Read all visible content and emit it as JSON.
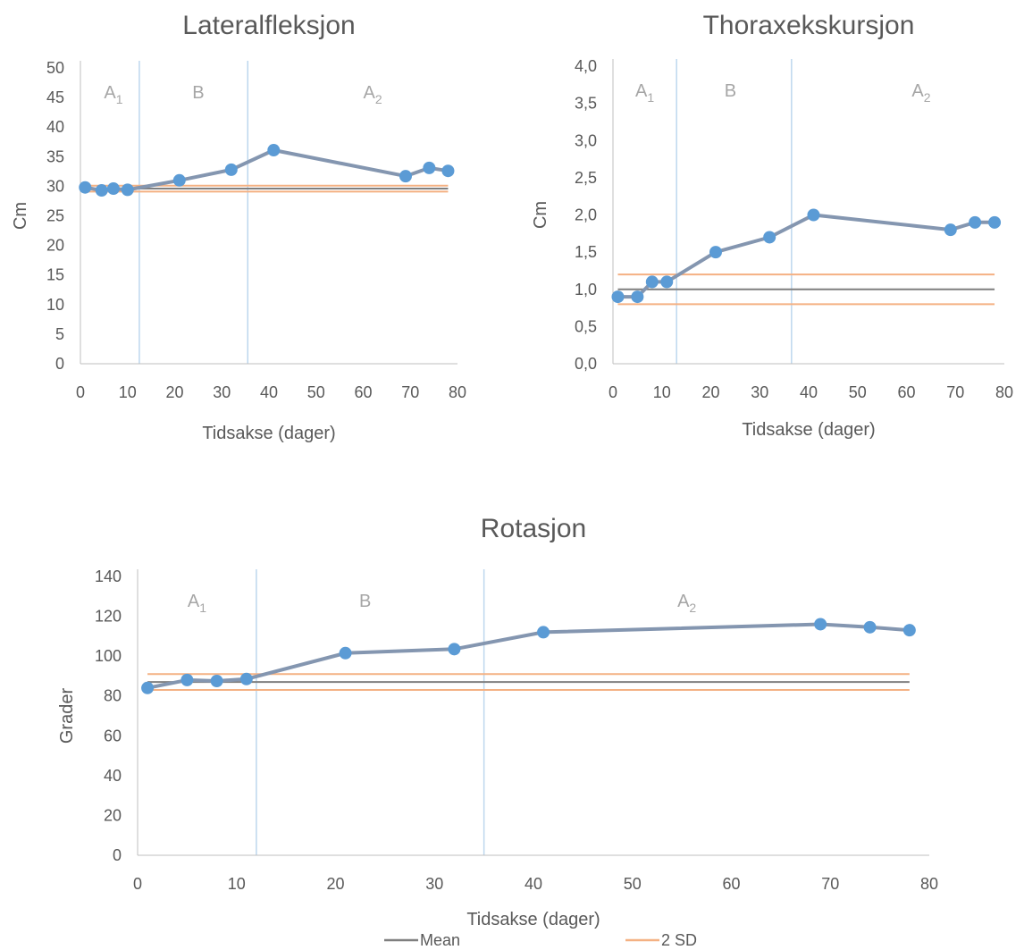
{
  "chart_data": [
    {
      "type": "line",
      "title": "Lateralfleksjon",
      "xlabel": "Tidsakse (dager)",
      "ylabel": "Cm",
      "xlim": [
        0,
        80
      ],
      "ylim": [
        0,
        50
      ],
      "xticks": [
        0,
        10,
        20,
        30,
        40,
        50,
        60,
        70,
        80
      ],
      "yticks": [
        0,
        5,
        10,
        15,
        20,
        25,
        30,
        35,
        40,
        45,
        50
      ],
      "ytick_decimals": 0,
      "x": [
        1,
        4.5,
        7,
        10,
        21,
        32,
        41,
        69,
        74,
        78
      ],
      "values": [
        29.8,
        29.3,
        29.6,
        29.4,
        31.0,
        32.8,
        36.1,
        31.7,
        33.1,
        32.6
      ],
      "mean": 29.6,
      "sd2": [
        29.1,
        30.1
      ],
      "ref_x": [
        1,
        78
      ],
      "phase_lines": [
        12.5,
        35.5
      ],
      "phases": [
        {
          "label": "A",
          "sub": "1",
          "x": 7
        },
        {
          "label": "B",
          "sub": "",
          "x": 25
        },
        {
          "label": "A",
          "sub": "2",
          "x": 62
        }
      ],
      "grid": false,
      "colors": {
        "data": "#5b9bd5",
        "line": "#8496b0",
        "mean": "#7f7f7f",
        "sd": "#f4b183",
        "phase": "#bdd7ee"
      }
    },
    {
      "type": "line",
      "title": "Thoraxekskursjon",
      "xlabel": "Tidsakse (dager)",
      "ylabel": "Cm",
      "xlim": [
        0,
        80
      ],
      "ylim": [
        0,
        4
      ],
      "xticks": [
        0,
        10,
        20,
        30,
        40,
        50,
        60,
        70,
        80
      ],
      "yticks": [
        0,
        0.5,
        1,
        1.5,
        2,
        2.5,
        3,
        3.5,
        4
      ],
      "ytick_decimals": 1,
      "decimal_comma": true,
      "x": [
        1,
        5,
        8,
        11,
        21,
        32,
        41,
        69,
        74,
        78
      ],
      "values": [
        0.9,
        0.9,
        1.1,
        1.1,
        1.5,
        1.7,
        2.0,
        1.8,
        1.9,
        1.9
      ],
      "mean": 1.0,
      "sd2": [
        0.8,
        1.2
      ],
      "ref_x": [
        1,
        78
      ],
      "phase_lines": [
        13,
        36.5
      ],
      "phases": [
        {
          "label": "A",
          "sub": "1",
          "x": 6.5
        },
        {
          "label": "B",
          "sub": "",
          "x": 24
        },
        {
          "label": "A",
          "sub": "2",
          "x": 63
        }
      ],
      "grid": false,
      "colors": {
        "data": "#5b9bd5",
        "line": "#8496b0",
        "mean": "#7f7f7f",
        "sd": "#f4b183",
        "phase": "#bdd7ee"
      }
    },
    {
      "type": "line",
      "title": "Rotasjon",
      "xlabel": "Tidsakse (dager)",
      "ylabel": "Grader",
      "xlim": [
        0,
        80
      ],
      "ylim": [
        0,
        140
      ],
      "xticks": [
        0,
        10,
        20,
        30,
        40,
        50,
        60,
        70,
        80
      ],
      "yticks": [
        0,
        20,
        40,
        60,
        80,
        100,
        120,
        140
      ],
      "ytick_decimals": 0,
      "x": [
        1,
        5,
        8,
        11,
        21,
        32,
        41,
        69,
        74,
        78
      ],
      "values": [
        84,
        88,
        87.5,
        88.5,
        101.5,
        103.5,
        112,
        116,
        114.5,
        113
      ],
      "mean": 87,
      "sd2": [
        83,
        91
      ],
      "ref_x": [
        1,
        78
      ],
      "phase_lines": [
        12,
        35
      ],
      "phases": [
        {
          "label": "A",
          "sub": "1",
          "x": 6
        },
        {
          "label": "B",
          "sub": "",
          "x": 23
        },
        {
          "label": "A",
          "sub": "2",
          "x": 55.5
        }
      ],
      "grid": false,
      "colors": {
        "data": "#5b9bd5",
        "line": "#8496b0",
        "mean": "#7f7f7f",
        "sd": "#f4b183",
        "phase": "#bdd7ee"
      }
    }
  ],
  "legend": {
    "placement": "bottom",
    "items": [
      {
        "label": "Mean",
        "color": "#7f7f7f"
      },
      {
        "label": "2 SD",
        "color": "#f4b183"
      }
    ]
  }
}
